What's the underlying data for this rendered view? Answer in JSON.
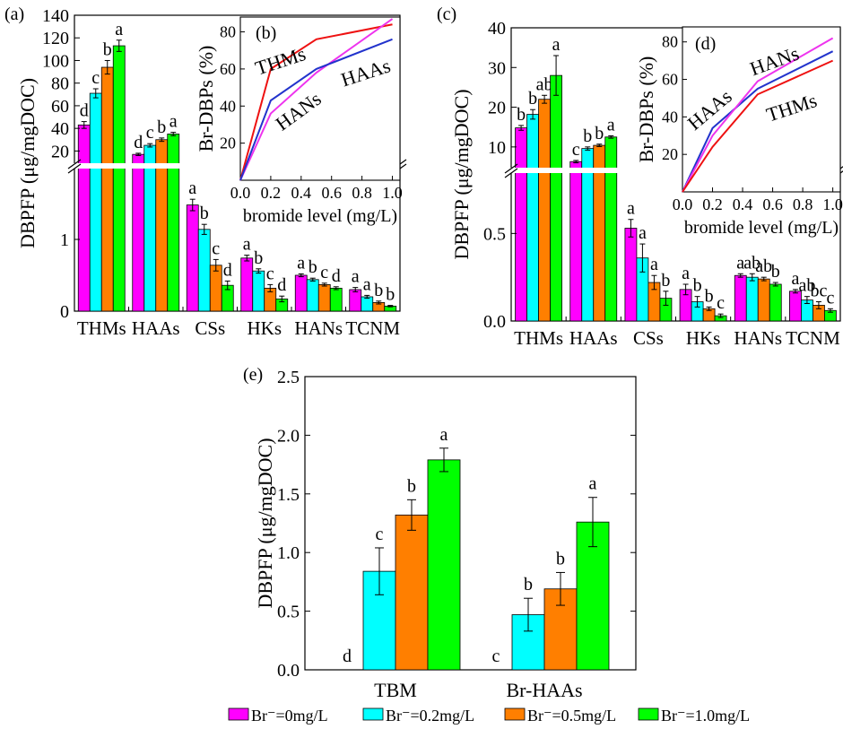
{
  "legend": {
    "items": [
      {
        "label": "Br⁻=0mg/L",
        "color": "#ff00ff"
      },
      {
        "label": "Br⁻=0.2mg/L",
        "color": "#00ffff"
      },
      {
        "label": "Br⁻=0.5mg/L",
        "color": "#ff7f00"
      },
      {
        "label": "Br⁻=1.0mg/L",
        "color": "#00ff00"
      }
    ]
  },
  "chart_data": [
    {
      "panel": "(a)",
      "type": "bar",
      "ylabel": "DBPFP (μg/mgDOC)",
      "categories": [
        "THMs",
        "HAAs",
        "CSs",
        "HKs",
        "HANs",
        "TCNM"
      ],
      "axis_break": true,
      "ylim_lower": [
        0,
        2
      ],
      "ylim_upper": [
        10,
        140
      ],
      "yticks_lower": [
        "0",
        "1"
      ],
      "yticks_upper": [
        "20",
        "40",
        "60",
        "80",
        "100",
        "120",
        "140"
      ],
      "series": [
        {
          "name": "Br⁻=0mg/L",
          "values": [
            43,
            17,
            1.48,
            0.74,
            0.5,
            0.3
          ],
          "errors": [
            3,
            1,
            0.08,
            0.04,
            0.02,
            0.03
          ]
        },
        {
          "name": "Br⁻=0.2mg/L",
          "values": [
            71,
            25,
            1.14,
            0.56,
            0.44,
            0.2
          ],
          "errors": [
            4,
            1.5,
            0.07,
            0.03,
            0.02,
            0.02
          ]
        },
        {
          "name": "Br⁻=0.5mg/L",
          "values": [
            94,
            30,
            0.64,
            0.32,
            0.37,
            0.12
          ],
          "errors": [
            6,
            1.5,
            0.08,
            0.05,
            0.02,
            0.02
          ]
        },
        {
          "name": "Br⁻=1.0mg/L",
          "values": [
            113,
            35,
            0.36,
            0.17,
            0.32,
            0.07
          ],
          "errors": [
            5,
            1.5,
            0.06,
            0.04,
            0.02,
            0.01
          ]
        }
      ],
      "letters": [
        [
          "d",
          "c",
          "b",
          "a"
        ],
        [
          "d",
          "c",
          "b",
          "a"
        ],
        [
          "a",
          "b",
          "c",
          "d"
        ],
        [
          "a",
          "b",
          "c",
          "d"
        ],
        [
          "a",
          "b",
          "c",
          "d"
        ],
        [
          "a",
          "a",
          "b",
          "b"
        ]
      ]
    },
    {
      "panel": "(b)",
      "type": "line",
      "xlabel": "bromide level (mg/L)",
      "ylabel": "Br-DBPs (%)",
      "xlim": [
        0,
        1.05
      ],
      "ylim": [
        0,
        88
      ],
      "xticks": [
        "0.0",
        "0.2",
        "0.4",
        "0.6",
        "0.8",
        "1.0"
      ],
      "yticks": [
        "20",
        "40",
        "60",
        "80"
      ],
      "x": [
        0,
        0.2,
        0.5,
        1.0
      ],
      "series": [
        {
          "label": "THMs",
          "color": "#ee1111",
          "values": [
            0,
            60,
            76,
            84
          ]
        },
        {
          "label": "HANs",
          "color": "#ee33ee",
          "values": [
            0,
            36,
            58,
            87
          ]
        },
        {
          "label": "HAAs",
          "color": "#2233cc",
          "values": [
            0,
            43,
            60,
            76
          ]
        }
      ]
    },
    {
      "panel": "(c)",
      "type": "bar",
      "ylabel": "DBPFP (μg/mgDOC)",
      "categories": [
        "THMs",
        "HAAs",
        "CSs",
        "HKs",
        "HANs",
        "TCNM"
      ],
      "axis_break": true,
      "ylim_lower": [
        0,
        0.85
      ],
      "ylim_upper": [
        5,
        40
      ],
      "yticks_lower": [
        "0.0",
        "0.5"
      ],
      "yticks_upper": [
        "10",
        "20",
        "30",
        "40"
      ],
      "series": [
        {
          "name": "Br⁻=0mg/L",
          "values": [
            14.8,
            6.3,
            0.53,
            0.18,
            0.26,
            0.17
          ],
          "errors": [
            0.6,
            0.3,
            0.05,
            0.03,
            0.01,
            0.01
          ]
        },
        {
          "name": "Br⁻=0.2mg/L",
          "values": [
            18.2,
            9.6,
            0.36,
            0.11,
            0.25,
            0.12
          ],
          "errors": [
            1.2,
            0.4,
            0.08,
            0.03,
            0.02,
            0.02
          ]
        },
        {
          "name": "Br⁻=0.5mg/L",
          "values": [
            22,
            10.4,
            0.22,
            0.07,
            0.24,
            0.09
          ],
          "errors": [
            1,
            0.3,
            0.04,
            0.01,
            0.01,
            0.02
          ]
        },
        {
          "name": "Br⁻=1.0mg/L",
          "values": [
            28,
            12.5,
            0.13,
            0.03,
            0.21,
            0.06
          ],
          "errors": [
            5,
            0.3,
            0.04,
            0.01,
            0.01,
            0.01
          ]
        }
      ],
      "letters": [
        [
          "b",
          "b",
          "ab",
          "a"
        ],
        [
          "c",
          "b",
          "b",
          "a"
        ],
        [
          "a",
          "a",
          "a",
          "b"
        ],
        [
          "a",
          "b",
          "b",
          "c"
        ],
        [
          "a",
          "ab",
          "ab",
          "b"
        ],
        [
          "a",
          "ab",
          "bc",
          "c"
        ]
      ]
    },
    {
      "panel": "(d)",
      "type": "line",
      "xlabel": "bromide level (mg/L)",
      "ylabel": "Br-DBPs (%)",
      "xlim": [
        0,
        1.05
      ],
      "ylim": [
        0,
        88
      ],
      "xticks": [
        "0.0",
        "0.2",
        "0.4",
        "0.6",
        "0.8",
        "1.0"
      ],
      "yticks": [
        "20",
        "40",
        "60",
        "80"
      ],
      "x": [
        0,
        0.2,
        0.5,
        1.0
      ],
      "series": [
        {
          "label": "HAAs",
          "color": "#2233cc",
          "values": [
            0,
            34,
            55,
            75
          ]
        },
        {
          "label": "HANs",
          "color": "#ee33ee",
          "values": [
            0,
            30,
            59,
            82
          ]
        },
        {
          "label": "THMs",
          "color": "#ee1111",
          "values": [
            0,
            24,
            52,
            70
          ]
        }
      ]
    },
    {
      "panel": "(e)",
      "type": "bar",
      "ylabel": "DBPFP (μg/mgDOC)",
      "categories": [
        "TBM",
        "Br-HAAs"
      ],
      "ylim": [
        0,
        2.5
      ],
      "yticks": [
        "0.0",
        "0.5",
        "1.0",
        "1.5",
        "2.0",
        "2.5"
      ],
      "series": [
        {
          "name": "Br⁻=0mg/L",
          "values": [
            0,
            0
          ],
          "errors": [
            0,
            0
          ]
        },
        {
          "name": "Br⁻=0.2mg/L",
          "values": [
            0.84,
            0.47
          ],
          "errors": [
            0.2,
            0.14
          ]
        },
        {
          "name": "Br⁻=0.5mg/L",
          "values": [
            1.32,
            0.69
          ],
          "errors": [
            0.13,
            0.14
          ]
        },
        {
          "name": "Br⁻=1.0mg/L",
          "values": [
            1.79,
            1.26
          ],
          "errors": [
            0.1,
            0.21
          ]
        }
      ],
      "letters": [
        [
          "d",
          "c",
          "b",
          "a"
        ],
        [
          "c",
          "b",
          "b",
          "a"
        ]
      ]
    }
  ]
}
